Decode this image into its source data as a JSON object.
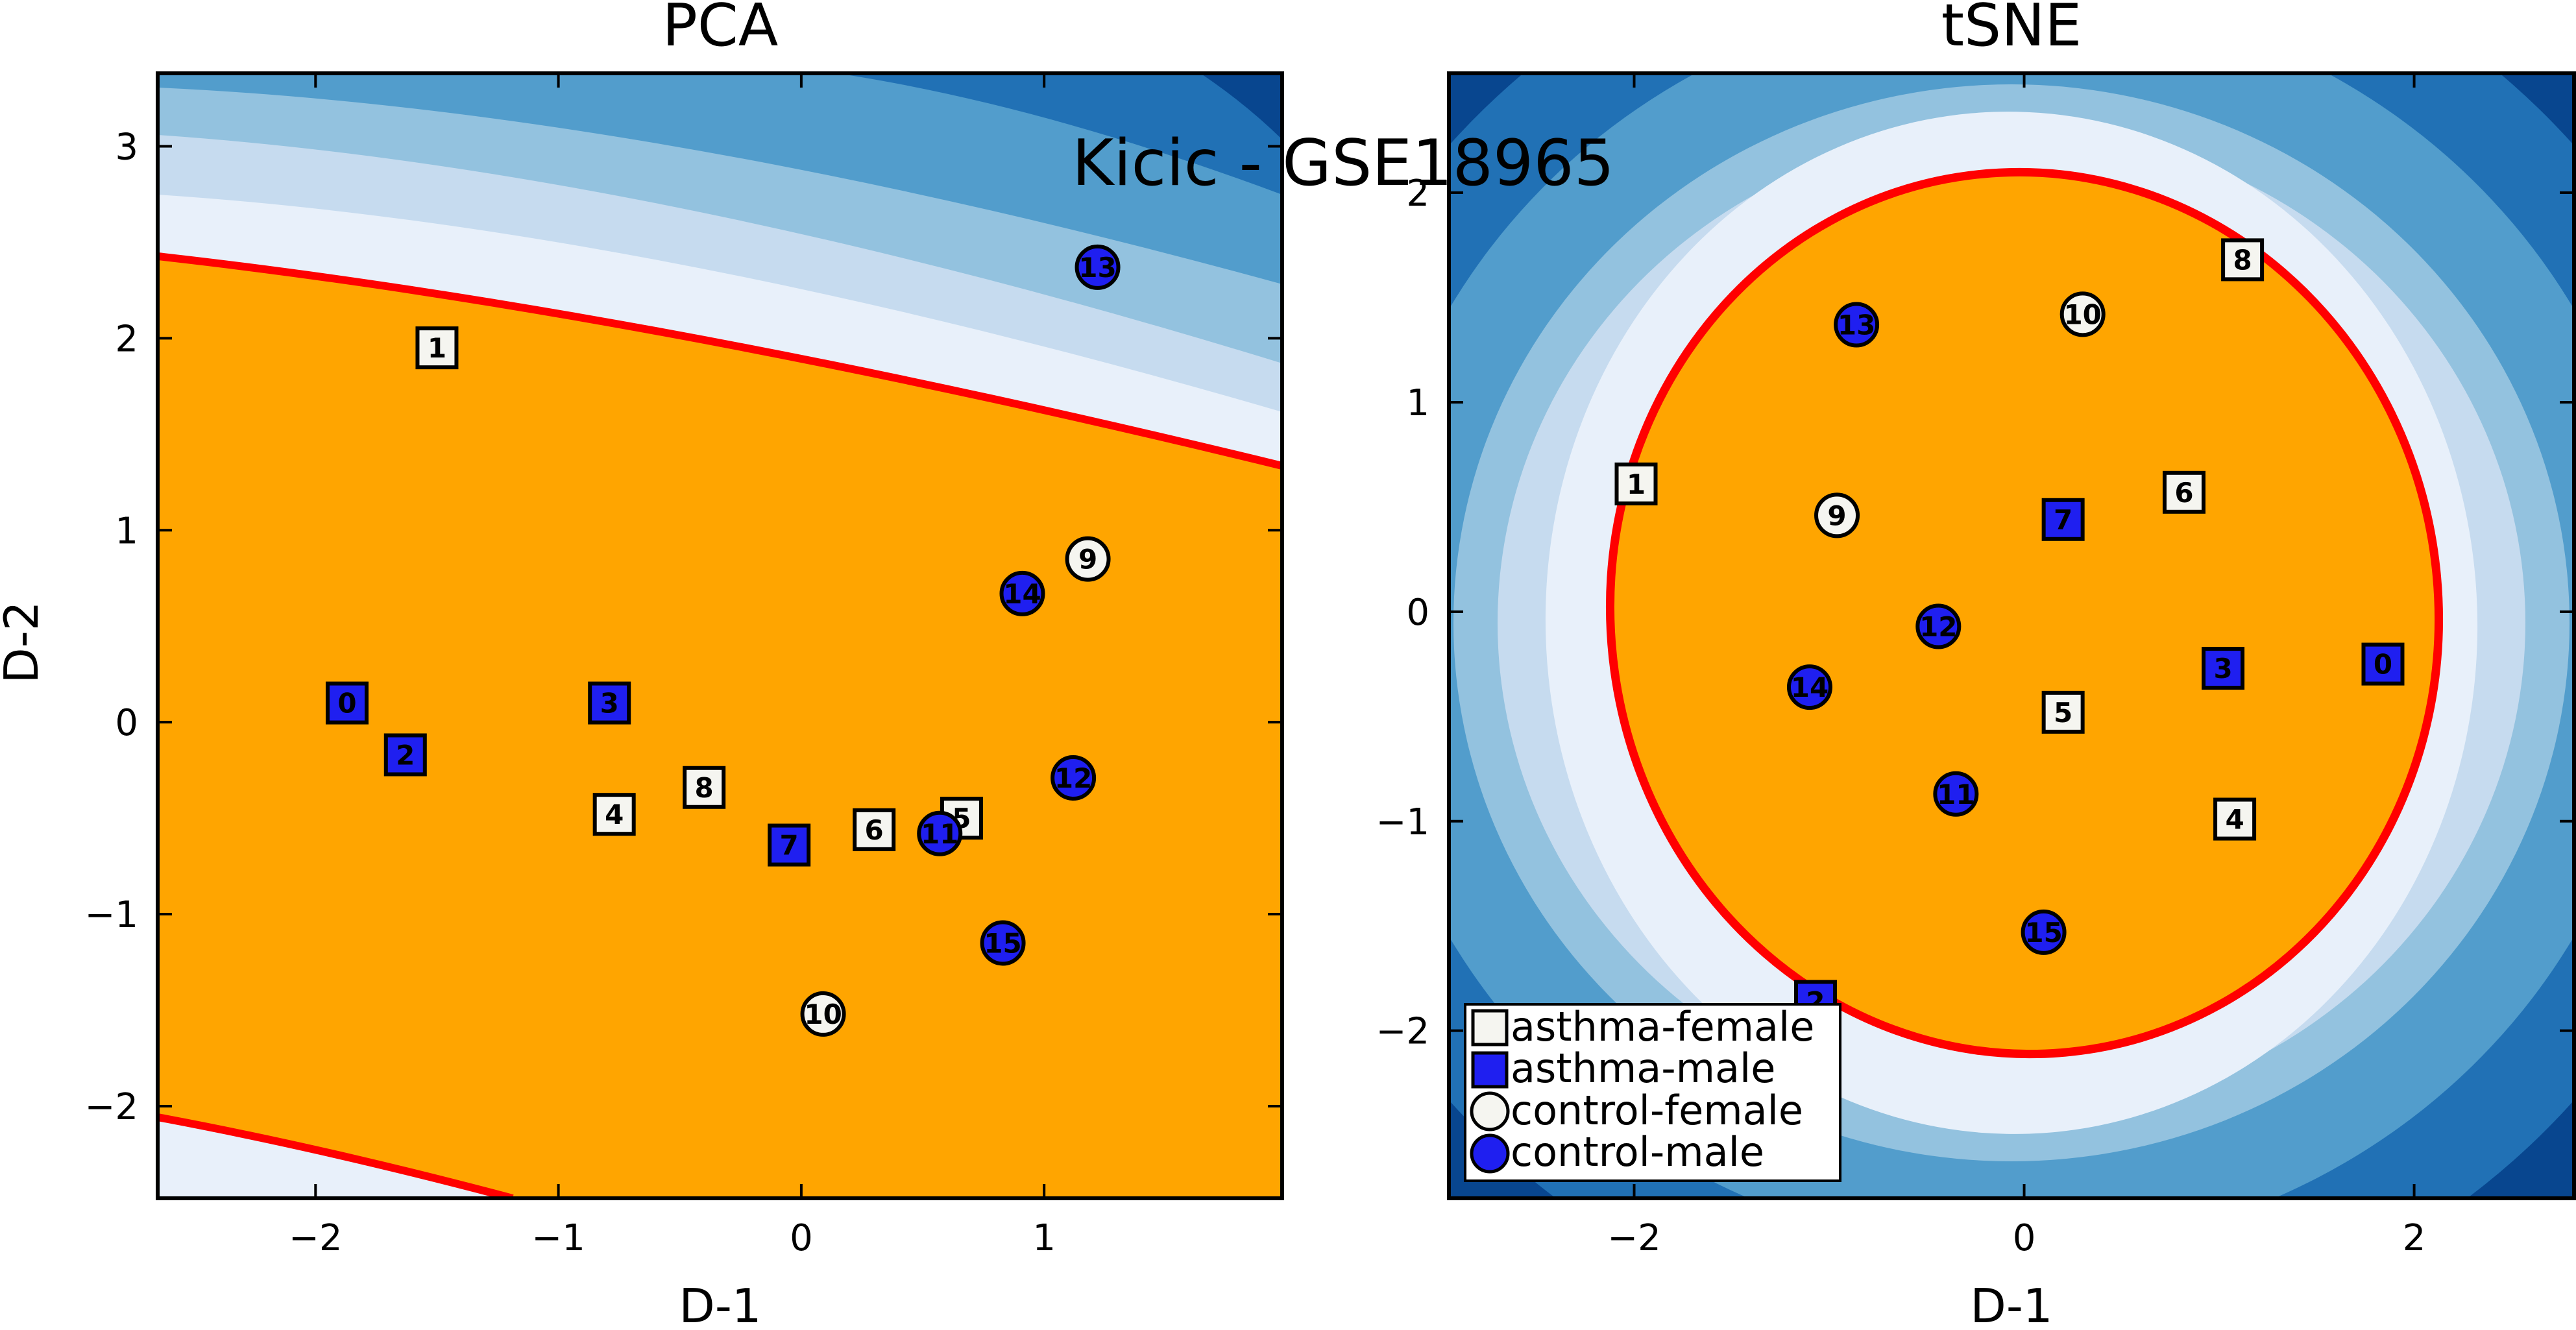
{
  "figure": {
    "suptitle": "Kicic - GSE18965"
  },
  "colors": {
    "orange": "#ffa500",
    "boundary": "#ff0000",
    "marker_blue": "#1f1ff0",
    "marker_white": "#f5f5f0",
    "blues": [
      "#e8f0fa",
      "#c6dbef",
      "#93c2df",
      "#529dcc",
      "#2171b5",
      "#08468f"
    ]
  },
  "chart_data": [
    {
      "type": "scatter",
      "title": "PCA",
      "xlabel": "D-1",
      "ylabel": "D-2",
      "xlim": [
        -2.65,
        1.98
      ],
      "ylim": [
        -2.48,
        3.38
      ],
      "xticks": [
        -2,
        -1,
        0,
        1
      ],
      "yticks": [
        -2,
        -1,
        0,
        1,
        2,
        3
      ],
      "series": [
        {
          "name": "asthma-female",
          "marker": "square",
          "color": "white",
          "points": [
            {
              "x": -1.5,
              "y": 1.95,
              "label": "1"
            },
            {
              "x": -0.77,
              "y": -0.48,
              "label": "4"
            },
            {
              "x": -0.4,
              "y": -0.34,
              "label": "8"
            },
            {
              "x": 0.3,
              "y": -0.56,
              "label": "6"
            },
            {
              "x": 0.66,
              "y": -0.5,
              "label": "5"
            }
          ]
        },
        {
          "name": "asthma-male",
          "marker": "square",
          "color": "blue",
          "points": [
            {
              "x": -1.87,
              "y": 0.1,
              "label": "0"
            },
            {
              "x": -1.63,
              "y": -0.17,
              "label": "2"
            },
            {
              "x": -0.79,
              "y": 0.1,
              "label": "3"
            },
            {
              "x": -0.05,
              "y": -0.64,
              "label": "7"
            }
          ]
        },
        {
          "name": "control-female",
          "marker": "circle",
          "color": "white",
          "points": [
            {
              "x": 1.18,
              "y": 0.85,
              "label": "9"
            },
            {
              "x": 0.09,
              "y": -1.52,
              "label": "10"
            }
          ]
        },
        {
          "name": "control-male",
          "marker": "circle",
          "color": "blue",
          "points": [
            {
              "x": 1.22,
              "y": 2.37,
              "label": "13"
            },
            {
              "x": 0.91,
              "y": 0.67,
              "label": "14"
            },
            {
              "x": 1.12,
              "y": -0.29,
              "label": "12"
            },
            {
              "x": 0.57,
              "y": -0.58,
              "label": "11"
            },
            {
              "x": 0.83,
              "y": -1.15,
              "label": "15"
            }
          ]
        }
      ]
    },
    {
      "type": "scatter",
      "title": "tSNE",
      "xlabel": "D-1",
      "ylabel": "",
      "xlim": [
        -2.95,
        2.82
      ],
      "ylim": [
        -2.8,
        2.57
      ],
      "xticks": [
        -2,
        0,
        2
      ],
      "yticks": [
        -2,
        -1,
        0,
        1,
        2
      ],
      "legend": {
        "placement": "lower-left",
        "entries": [
          "asthma-female",
          "asthma-male",
          "control-female",
          "control-male"
        ]
      },
      "series": [
        {
          "name": "asthma-female",
          "marker": "square",
          "color": "white",
          "points": [
            {
              "x": -1.99,
              "y": 0.61,
              "label": "1"
            },
            {
              "x": 1.12,
              "y": 1.68,
              "label": "8"
            },
            {
              "x": 0.82,
              "y": 0.57,
              "label": "6"
            },
            {
              "x": 0.2,
              "y": -0.48,
              "label": "5"
            },
            {
              "x": 1.08,
              "y": -0.99,
              "label": "4"
            }
          ]
        },
        {
          "name": "asthma-male",
          "marker": "square",
          "color": "blue",
          "points": [
            {
              "x": 0.2,
              "y": 0.44,
              "label": "7"
            },
            {
              "x": 1.02,
              "y": -0.27,
              "label": "3"
            },
            {
              "x": 1.84,
              "y": -0.25,
              "label": "0"
            },
            {
              "x": -1.07,
              "y": -1.86,
              "label": "2"
            }
          ]
        },
        {
          "name": "control-female",
          "marker": "circle",
          "color": "white",
          "points": [
            {
              "x": 0.3,
              "y": 1.42,
              "label": "10"
            },
            {
              "x": -0.96,
              "y": 0.46,
              "label": "9"
            }
          ]
        },
        {
          "name": "control-male",
          "marker": "circle",
          "color": "blue",
          "points": [
            {
              "x": -0.86,
              "y": 1.37,
              "label": "13"
            },
            {
              "x": -0.44,
              "y": -0.07,
              "label": "12"
            },
            {
              "x": -1.1,
              "y": -0.36,
              "label": "14"
            },
            {
              "x": -0.35,
              "y": -0.87,
              "label": "11"
            },
            {
              "x": 0.1,
              "y": -1.53,
              "label": "15"
            }
          ]
        }
      ]
    }
  ]
}
